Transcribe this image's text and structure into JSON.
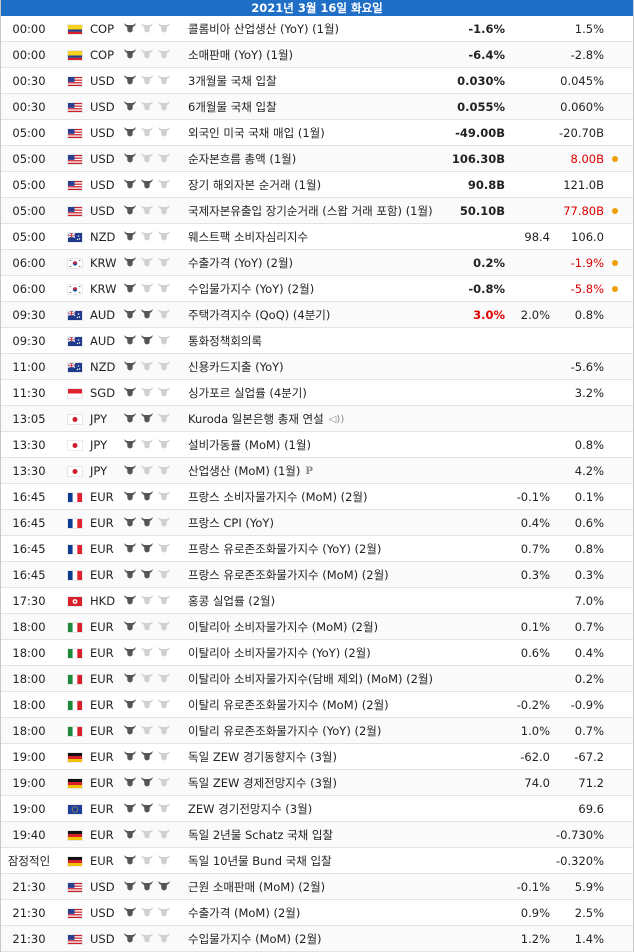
{
  "header": {
    "date": "2021년 3월 16일 화요일"
  },
  "colors": {
    "header_bg": "#1f6fc6",
    "bull_on": "#555555",
    "bull_off": "#d0d0d0",
    "negative_text": "#dd0000",
    "revision_dot": "#f0a000"
  },
  "flags": {
    "COP_co": {
      "type": "h",
      "stripes": [
        "#f7d117",
        "#f7d117",
        "#1f3f8f",
        "#d8202b"
      ]
    },
    "USD_us": {
      "type": "us"
    },
    "NZD_nz": {
      "type": "nz"
    },
    "KRW_kr": {
      "type": "kr"
    },
    "AUD_au": {
      "type": "nz"
    },
    "SGD_sg": {
      "type": "h",
      "stripes": [
        "#e0242f",
        "#ffffff"
      ]
    },
    "JPY_jp": {
      "type": "jp"
    },
    "EUR_fr": {
      "type": "v",
      "stripes": [
        "#0a3d91",
        "#ffffff",
        "#e0242f"
      ]
    },
    "HKD_hk": {
      "type": "hk"
    },
    "EUR_it": {
      "type": "v",
      "stripes": [
        "#1b8a3b",
        "#ffffff",
        "#d8202b"
      ]
    },
    "EUR_de": {
      "type": "h",
      "stripes": [
        "#111111",
        "#d8202b",
        "#f2c200"
      ]
    },
    "EUR_eu": {
      "type": "eu"
    }
  },
  "rows": [
    {
      "time": "00:00",
      "flag": "COP_co",
      "currency": "COP",
      "importance": 1,
      "event": "콜롬비아 산업생산 (YoY) (1월)",
      "event_icon": "",
      "actual": "-1.6%",
      "actual_color": "",
      "forecast": "",
      "previous": "1.5%",
      "previous_color": "",
      "revision": false
    },
    {
      "time": "00:00",
      "flag": "COP_co",
      "currency": "COP",
      "importance": 1,
      "event": "소매판매 (YoY) (1월)",
      "event_icon": "",
      "actual": "-6.4%",
      "actual_color": "",
      "forecast": "",
      "previous": "-2.8%",
      "previous_color": "",
      "revision": false
    },
    {
      "time": "00:30",
      "flag": "USD_us",
      "currency": "USD",
      "importance": 1,
      "event": "3개월물 국채 입찰",
      "event_icon": "",
      "actual": "0.030%",
      "actual_color": "",
      "forecast": "",
      "previous": "0.045%",
      "previous_color": "",
      "revision": false
    },
    {
      "time": "00:30",
      "flag": "USD_us",
      "currency": "USD",
      "importance": 1,
      "event": "6개월물 국채 입찰",
      "event_icon": "",
      "actual": "0.055%",
      "actual_color": "",
      "forecast": "",
      "previous": "0.060%",
      "previous_color": "",
      "revision": false
    },
    {
      "time": "05:00",
      "flag": "USD_us",
      "currency": "USD",
      "importance": 1,
      "event": "외국인 미국 국채 매입 (1월)",
      "event_icon": "",
      "actual": "-49.00B",
      "actual_color": "",
      "forecast": "",
      "previous": "-20.70B",
      "previous_color": "",
      "revision": false
    },
    {
      "time": "05:00",
      "flag": "USD_us",
      "currency": "USD",
      "importance": 1,
      "event": "순자본흐름 총액 (1월)",
      "event_icon": "",
      "actual": "106.30B",
      "actual_color": "",
      "forecast": "",
      "previous": "8.00B",
      "previous_color": "neg",
      "revision": true
    },
    {
      "time": "05:00",
      "flag": "USD_us",
      "currency": "USD",
      "importance": 2,
      "event": "장기 해외자본 순거래 (1월)",
      "event_icon": "",
      "actual": "90.8B",
      "actual_color": "",
      "forecast": "",
      "previous": "121.0B",
      "previous_color": "",
      "revision": false
    },
    {
      "time": "05:00",
      "flag": "USD_us",
      "currency": "USD",
      "importance": 1,
      "event": "국제자본유출입 장기순거래 (스왑 거래 포함) (1월)",
      "event_icon": "",
      "actual": "50.10B",
      "actual_color": "",
      "forecast": "",
      "previous": "77.80B",
      "previous_color": "neg",
      "revision": true
    },
    {
      "time": "05:00",
      "flag": "NZD_nz",
      "currency": "NZD",
      "importance": 1,
      "event": "웨스트팩 소비자심리지수",
      "event_icon": "",
      "actual": "",
      "actual_color": "",
      "forecast": "98.4",
      "previous": "106.0",
      "previous_color": "",
      "revision": false
    },
    {
      "time": "06:00",
      "flag": "KRW_kr",
      "currency": "KRW",
      "importance": 1,
      "event": "수출가격 (YoY) (2월)",
      "event_icon": "",
      "actual": "0.2%",
      "actual_color": "",
      "forecast": "",
      "previous": "-1.9%",
      "previous_color": "neg",
      "revision": true
    },
    {
      "time": "06:00",
      "flag": "KRW_kr",
      "currency": "KRW",
      "importance": 1,
      "event": "수입물가지수 (YoY) (2월)",
      "event_icon": "",
      "actual": "-0.8%",
      "actual_color": "",
      "forecast": "",
      "previous": "-5.8%",
      "previous_color": "neg",
      "revision": true
    },
    {
      "time": "09:30",
      "flag": "AUD_au",
      "currency": "AUD",
      "importance": 2,
      "event": "주택가격지수 (QoQ) (4분기)",
      "event_icon": "",
      "actual": "3.0%",
      "actual_color": "neg",
      "forecast": "2.0%",
      "previous": "0.8%",
      "previous_color": "",
      "revision": false
    },
    {
      "time": "09:30",
      "flag": "AUD_au",
      "currency": "AUD",
      "importance": 2,
      "event": "통화정책회의록",
      "event_icon": "",
      "actual": "",
      "actual_color": "",
      "forecast": "",
      "previous": "",
      "previous_color": "",
      "revision": false
    },
    {
      "time": "11:00",
      "flag": "NZD_nz",
      "currency": "NZD",
      "importance": 1,
      "event": "신용카드지출 (YoY)",
      "event_icon": "",
      "actual": "",
      "actual_color": "",
      "forecast": "",
      "previous": "-5.6%",
      "previous_color": "",
      "revision": false
    },
    {
      "time": "11:30",
      "flag": "SGD_sg",
      "currency": "SGD",
      "importance": 1,
      "event": "싱가포르 실업률 (4분기)",
      "event_icon": "",
      "actual": "",
      "actual_color": "",
      "forecast": "",
      "previous": "3.2%",
      "previous_color": "",
      "revision": false
    },
    {
      "time": "13:05",
      "flag": "JPY_jp",
      "currency": "JPY",
      "importance": 2,
      "event": "Kuroda 일본은행 총재 연설",
      "event_icon": "speaker",
      "actual": "",
      "actual_color": "",
      "forecast": "",
      "previous": "",
      "previous_color": "",
      "revision": false
    },
    {
      "time": "13:30",
      "flag": "JPY_jp",
      "currency": "JPY",
      "importance": 1,
      "event": "설비가동률 (MoM) (1월)",
      "event_icon": "",
      "actual": "",
      "actual_color": "",
      "forecast": "",
      "previous": "0.8%",
      "previous_color": "",
      "revision": false
    },
    {
      "time": "13:30",
      "flag": "JPY_jp",
      "currency": "JPY",
      "importance": 1,
      "event": "산업생산 (MoM) (1월)",
      "event_icon": "P",
      "actual": "",
      "actual_color": "",
      "forecast": "",
      "previous": "4.2%",
      "previous_color": "",
      "revision": false
    },
    {
      "time": "16:45",
      "flag": "EUR_fr",
      "currency": "EUR",
      "importance": 2,
      "event": "프랑스 소비자물가지수 (MoM) (2월)",
      "event_icon": "",
      "actual": "",
      "actual_color": "",
      "forecast": "-0.1%",
      "previous": "0.1%",
      "previous_color": "",
      "revision": false
    },
    {
      "time": "16:45",
      "flag": "EUR_fr",
      "currency": "EUR",
      "importance": 2,
      "event": "프랑스 CPI (YoY)",
      "event_icon": "",
      "actual": "",
      "actual_color": "",
      "forecast": "0.4%",
      "previous": "0.6%",
      "previous_color": "",
      "revision": false
    },
    {
      "time": "16:45",
      "flag": "EUR_fr",
      "currency": "EUR",
      "importance": 2,
      "event": "프랑스 유로존조화물가지수 (YoY) (2월)",
      "event_icon": "",
      "actual": "",
      "actual_color": "",
      "forecast": "0.7%",
      "previous": "0.8%",
      "previous_color": "",
      "revision": false
    },
    {
      "time": "16:45",
      "flag": "EUR_fr",
      "currency": "EUR",
      "importance": 2,
      "event": "프랑스 유로존조화물가지수 (MoM) (2월)",
      "event_icon": "",
      "actual": "",
      "actual_color": "",
      "forecast": "0.3%",
      "previous": "0.3%",
      "previous_color": "",
      "revision": false
    },
    {
      "time": "17:30",
      "flag": "HKD_hk",
      "currency": "HKD",
      "importance": 1,
      "event": "홍콩 실업률 (2월)",
      "event_icon": "",
      "actual": "",
      "actual_color": "",
      "forecast": "",
      "previous": "7.0%",
      "previous_color": "",
      "revision": false
    },
    {
      "time": "18:00",
      "flag": "EUR_it",
      "currency": "EUR",
      "importance": 1,
      "event": "이탈리아 소비자물가지수 (MoM) (2월)",
      "event_icon": "",
      "actual": "",
      "actual_color": "",
      "forecast": "0.1%",
      "previous": "0.7%",
      "previous_color": "",
      "revision": false
    },
    {
      "time": "18:00",
      "flag": "EUR_it",
      "currency": "EUR",
      "importance": 1,
      "event": "이탈리아 소비자물가지수 (YoY) (2월)",
      "event_icon": "",
      "actual": "",
      "actual_color": "",
      "forecast": "0.6%",
      "previous": "0.4%",
      "previous_color": "",
      "revision": false
    },
    {
      "time": "18:00",
      "flag": "EUR_it",
      "currency": "EUR",
      "importance": 1,
      "event": "이탈리아 소비자물가지수(담배 제외) (MoM) (2월)",
      "event_icon": "",
      "actual": "",
      "actual_color": "",
      "forecast": "",
      "previous": "0.2%",
      "previous_color": "",
      "revision": false
    },
    {
      "time": "18:00",
      "flag": "EUR_it",
      "currency": "EUR",
      "importance": 1,
      "event": "이탈리 유로존조화물가지수 (MoM) (2월)",
      "event_icon": "",
      "actual": "",
      "actual_color": "",
      "forecast": "-0.2%",
      "previous": "-0.9%",
      "previous_color": "",
      "revision": false
    },
    {
      "time": "18:00",
      "flag": "EUR_it",
      "currency": "EUR",
      "importance": 1,
      "event": "이탈리 유로존조화물가지수 (YoY) (2월)",
      "event_icon": "",
      "actual": "",
      "actual_color": "",
      "forecast": "1.0%",
      "previous": "0.7%",
      "previous_color": "",
      "revision": false
    },
    {
      "time": "19:00",
      "flag": "EUR_de",
      "currency": "EUR",
      "importance": 2,
      "event": "독일 ZEW 경기동향지수 (3월)",
      "event_icon": "",
      "actual": "",
      "actual_color": "",
      "forecast": "-62.0",
      "previous": "-67.2",
      "previous_color": "",
      "revision": false
    },
    {
      "time": "19:00",
      "flag": "EUR_de",
      "currency": "EUR",
      "importance": 2,
      "event": "독일 ZEW 경제전망지수 (3월)",
      "event_icon": "",
      "actual": "",
      "actual_color": "",
      "forecast": "74.0",
      "previous": "71.2",
      "previous_color": "",
      "revision": false
    },
    {
      "time": "19:00",
      "flag": "EUR_eu",
      "currency": "EUR",
      "importance": 2,
      "event": "ZEW 경기전망지수 (3월)",
      "event_icon": "",
      "actual": "",
      "actual_color": "",
      "forecast": "",
      "previous": "69.6",
      "previous_color": "",
      "revision": false
    },
    {
      "time": "19:40",
      "flag": "EUR_de",
      "currency": "EUR",
      "importance": 1,
      "event": "독일 2년물 Schatz 국채 입찰",
      "event_icon": "",
      "actual": "",
      "actual_color": "",
      "forecast": "",
      "previous": "-0.730%",
      "previous_color": "",
      "revision": false
    },
    {
      "time": "잠정적인",
      "flag": "EUR_de",
      "currency": "EUR",
      "importance": 1,
      "event": "독일 10년물 Bund 국채 입찰",
      "event_icon": "",
      "actual": "",
      "actual_color": "",
      "forecast": "",
      "previous": "-0.320%",
      "previous_color": "",
      "revision": false
    },
    {
      "time": "21:30",
      "flag": "USD_us",
      "currency": "USD",
      "importance": 3,
      "event": "근원 소매판매 (MoM) (2월)",
      "event_icon": "",
      "actual": "",
      "actual_color": "",
      "forecast": "-0.1%",
      "previous": "5.9%",
      "previous_color": "",
      "revision": false
    },
    {
      "time": "21:30",
      "flag": "USD_us",
      "currency": "USD",
      "importance": 1,
      "event": "수출가격 (MoM) (2월)",
      "event_icon": "",
      "actual": "",
      "actual_color": "",
      "forecast": "0.9%",
      "previous": "2.5%",
      "previous_color": "",
      "revision": false
    },
    {
      "time": "21:30",
      "flag": "USD_us",
      "currency": "USD",
      "importance": 1,
      "event": "수입물가지수 (MoM) (2월)",
      "event_icon": "",
      "actual": "",
      "actual_color": "",
      "forecast": "1.2%",
      "previous": "1.4%",
      "previous_color": "",
      "revision": false
    }
  ]
}
